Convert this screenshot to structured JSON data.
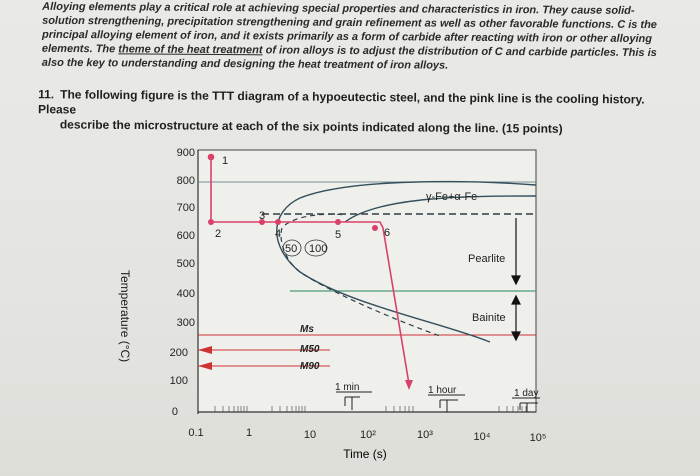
{
  "intro": {
    "p1": "Alloying elements play a critical role at achieving special properties and characteristics in iron. They cause solid-solution strengthening, precipitation strengthening and grain refinement as well as other favorable functions. C is the principal alloying element of iron, and it exists primarily as a form of carbide after reacting with iron or other alloying elements. The ",
    "theme": "theme of the heat treatment",
    "p2": " of iron alloys is to adjust the distribution of C and carbide particles. This is also the key to understanding and designing the heat treatment of iron alloys."
  },
  "question": {
    "number": "11.",
    "line1": "The following figure is the TTT diagram of a hypoeutectic steel, and the pink line is the cooling history. Please",
    "line2": "describe the microstructure at each of the six points indicated along the line. (15 points)"
  },
  "chart_data": {
    "type": "line",
    "ylabel": "Temperature (°C)",
    "xlabel": "Time (s)",
    "y_ticks": [
      "900",
      "800",
      "700",
      "600",
      "500",
      "400",
      "300",
      "200",
      "100",
      "0"
    ],
    "x_ticks": [
      "0.1",
      "1",
      "10",
      "10²",
      "10³",
      "10⁴",
      "10⁵"
    ],
    "regions": [
      "γ-Fe+α-Fe",
      "Pearlite",
      "Bainite"
    ],
    "martensite_labels": [
      "Ms",
      "M50",
      "M90"
    ],
    "curve_labels": [
      "50",
      "100"
    ],
    "time_marks": [
      "1 min",
      "1 hour",
      "1 day"
    ],
    "points": [
      {
        "label": "1",
        "time_s": 0.12,
        "temp": 890
      },
      {
        "label": "2",
        "time_s": 0.12,
        "temp": 620
      },
      {
        "label": "3",
        "time_s": 2.5,
        "temp": 620
      },
      {
        "label": "4",
        "time_s": 3,
        "temp": 620
      },
      {
        "label": "5",
        "time_s": 30,
        "temp": 635
      },
      {
        "label": "6",
        "time_s": 130,
        "temp": 650
      }
    ],
    "colors": {
      "cooling": "#d9416a",
      "curves": "#34505c",
      "green": "#4f9b7a",
      "red": "#cc3333"
    }
  }
}
